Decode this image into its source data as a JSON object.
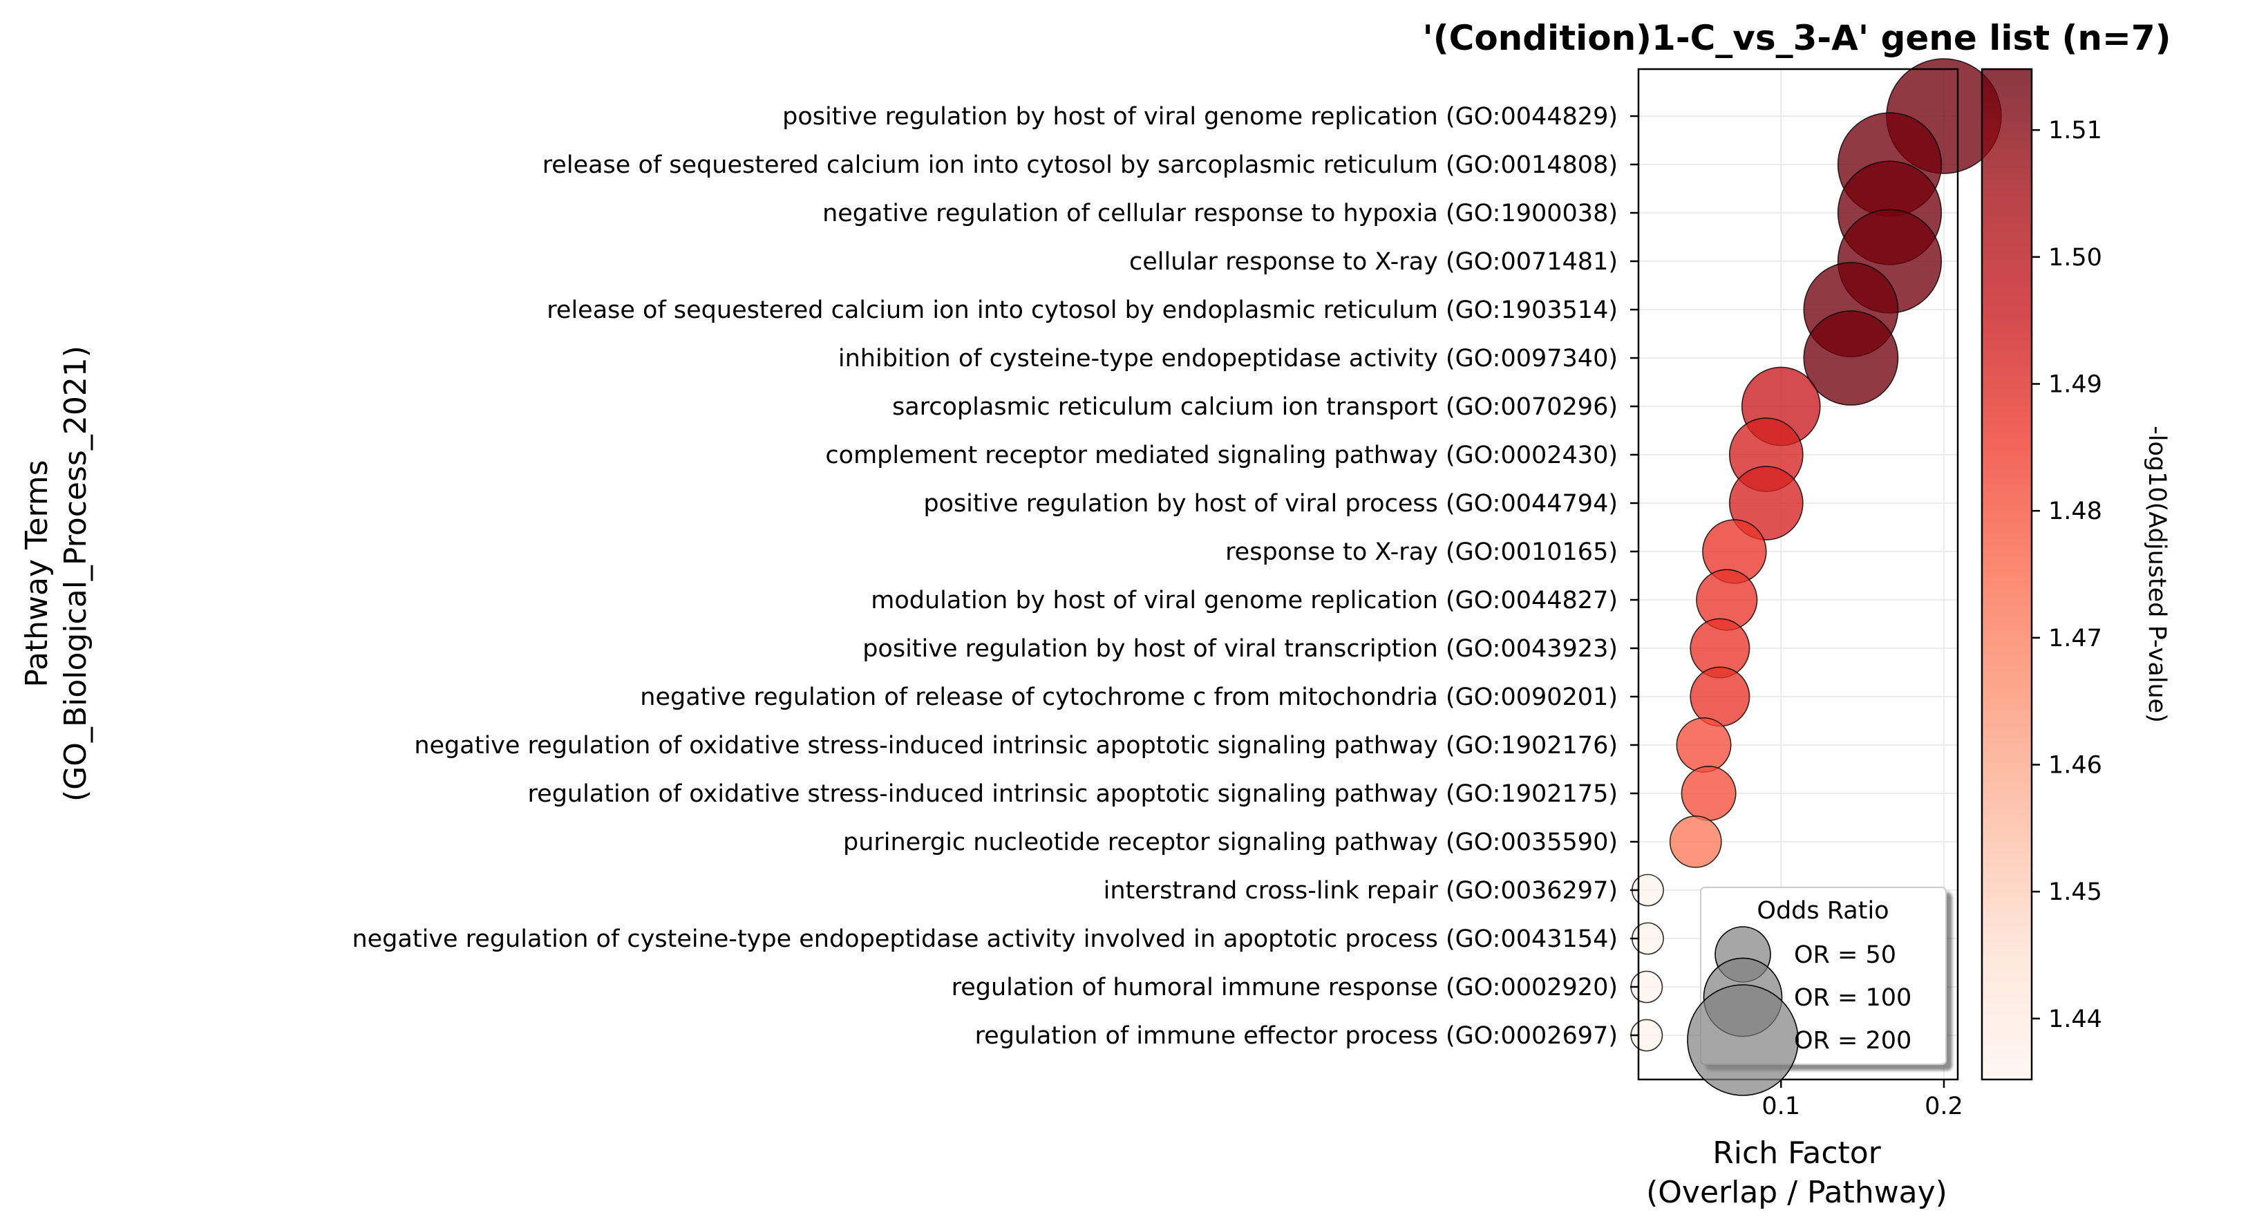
{
  "chart_data": {
    "type": "scatter",
    "title": "'(Condition)1-C_vs_3-A' gene list (n=7)",
    "xlabel_line1": "Rich Factor",
    "xlabel_line2": "(Overlap / Pathway)",
    "ylabel_line1": "Pathway Terms",
    "ylabel_line2": "(GO_Biological_Process_2021)",
    "colorbar_label": "-log10(Adjusted P-value)",
    "xlim": [
      0.0125,
      0.2085
    ],
    "x_ticks": [
      0.1,
      0.2
    ],
    "x_tick_labels": [
      "0.1",
      "0.2"
    ],
    "grid": true,
    "colormap": [
      "#fff5f0",
      "#fee0d2",
      "#fcbba1",
      "#fc9272",
      "#fb6a4a",
      "#ef3b2c",
      "#cb181d",
      "#a50f15",
      "#67000d"
    ],
    "color_range": [
      1.4352,
      1.5148
    ],
    "colorbar_ticks": [
      1.44,
      1.45,
      1.46,
      1.47,
      1.48,
      1.49,
      1.5,
      1.51
    ],
    "colorbar_tick_labels": [
      "1.44",
      "1.45",
      "1.46",
      "1.47",
      "1.48",
      "1.49",
      "1.50",
      "1.51"
    ],
    "legend": {
      "title": "Odds Ratio",
      "placement": "lower-right",
      "entries": [
        {
          "label": "OR = 50",
          "value": 50
        },
        {
          "label": "OR = 100",
          "value": 100
        },
        {
          "label": "OR = 200",
          "value": 200
        }
      ]
    },
    "points": [
      {
        "term": "positive regulation by host of viral genome replication (GO:0044829)",
        "rich_factor": 0.2,
        "neglog10_padj": 1.513,
        "odds_ratio": 215
      },
      {
        "term": "release of sequestered calcium ion into cytosol by sarcoplasmic reticulum (GO:0014808)",
        "rich_factor": 0.1667,
        "neglog10_padj": 1.513,
        "odds_ratio": 175
      },
      {
        "term": "negative regulation of cellular response to hypoxia (GO:1900038)",
        "rich_factor": 0.1667,
        "neglog10_padj": 1.513,
        "odds_ratio": 175
      },
      {
        "term": "cellular response to X-ray (GO:0071481)",
        "rich_factor": 0.1667,
        "neglog10_padj": 1.513,
        "odds_ratio": 175
      },
      {
        "term": "release of sequestered calcium ion into cytosol by endoplasmic reticulum (GO:1903514)",
        "rich_factor": 0.1429,
        "neglog10_padj": 1.513,
        "odds_ratio": 145
      },
      {
        "term": "inhibition of cysteine-type endopeptidase activity (GO:0097340)",
        "rich_factor": 0.1429,
        "neglog10_padj": 1.513,
        "odds_ratio": 145
      },
      {
        "term": "sarcoplasmic reticulum calcium ion transport (GO:0070296)",
        "rich_factor": 0.1,
        "neglog10_padj": 1.495,
        "odds_ratio": 100
      },
      {
        "term": "complement receptor mediated signaling pathway (GO:0002430)",
        "rich_factor": 0.0909,
        "neglog10_padj": 1.492,
        "odds_ratio": 88
      },
      {
        "term": "positive regulation by host of viral process (GO:0044794)",
        "rich_factor": 0.0909,
        "neglog10_padj": 1.492,
        "odds_ratio": 88
      },
      {
        "term": "response to X-ray (GO:0010165)",
        "rich_factor": 0.0714,
        "neglog10_padj": 1.487,
        "odds_ratio": 66
      },
      {
        "term": "modulation by host of viral genome replication (GO:0044827)",
        "rich_factor": 0.0667,
        "neglog10_padj": 1.487,
        "odds_ratio": 60
      },
      {
        "term": "positive regulation by host of viral transcription (GO:0043923)",
        "rich_factor": 0.0625,
        "neglog10_padj": 1.487,
        "odds_ratio": 57
      },
      {
        "term": "negative regulation of release of cytochrome c from mitochondria (GO:0090201)",
        "rich_factor": 0.0625,
        "neglog10_padj": 1.487,
        "odds_ratio": 57
      },
      {
        "term": "negative regulation of oxidative stress-induced intrinsic apoptotic signaling pathway (GO:1902176)",
        "rich_factor": 0.0526,
        "neglog10_padj": 1.481,
        "odds_ratio": 48
      },
      {
        "term": "regulation of oxidative stress-induced intrinsic apoptotic signaling pathway (GO:1902175)",
        "rich_factor": 0.0556,
        "neglog10_padj": 1.481,
        "odds_ratio": 48
      },
      {
        "term": "purinergic nucleotide receptor signaling pathway (GO:0035590)",
        "rich_factor": 0.0476,
        "neglog10_padj": 1.471,
        "odds_ratio": 43
      },
      {
        "term": "interstrand cross-link repair (GO:0036297)",
        "rich_factor": 0.0182,
        "neglog10_padj": 1.436,
        "odds_ratio": 16
      },
      {
        "term": "negative regulation of cysteine-type endopeptidase activity involved in apoptotic process (GO:0043154)",
        "rich_factor": 0.0182,
        "neglog10_padj": 1.436,
        "odds_ratio": 16
      },
      {
        "term": "regulation of humoral immune response (GO:0002920)",
        "rich_factor": 0.0175,
        "neglog10_padj": 1.436,
        "odds_ratio": 16
      },
      {
        "term": "regulation of immune effector process (GO:0002697)",
        "rich_factor": 0.0175,
        "neglog10_padj": 1.436,
        "odds_ratio": 16
      }
    ]
  }
}
